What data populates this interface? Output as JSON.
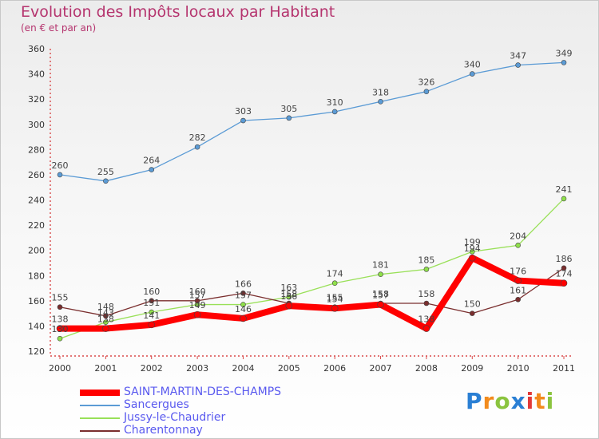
{
  "header": {
    "title": "Evolution des Impôts locaux par Habitant",
    "subtitle": "(en € et par an)"
  },
  "logo": {
    "text": "Proxiti"
  },
  "chart_data": {
    "type": "line",
    "title": "Evolution des Impôts locaux par Habitant",
    "subtitle": "(en € et par an)",
    "xlabel": "",
    "ylabel": "",
    "x": [
      "2000",
      "2001",
      "2002",
      "2003",
      "2004",
      "2005",
      "2006",
      "2007",
      "2008",
      "2009",
      "2010",
      "2011"
    ],
    "ylim": [
      120,
      360
    ],
    "yticks": [
      120,
      140,
      160,
      180,
      200,
      220,
      240,
      260,
      280,
      300,
      320,
      340,
      360
    ],
    "grid": false,
    "legend_position": "bottom-left",
    "series": [
      {
        "name": "SAINT-MARTIN-DES-CHAMPS",
        "color": "#ff0000",
        "values": [
          138,
          138,
          141,
          149,
          146,
          156,
          154,
          157,
          138,
          194,
          176,
          174
        ],
        "labels": [
          "138",
          "138",
          "141",
          "149",
          "146",
          "156",
          "154",
          "157",
          "138",
          "194",
          "176",
          "174"
        ]
      },
      {
        "name": "Sancergues",
        "color": "#5b9bd5",
        "values": [
          260,
          255,
          264,
          282,
          303,
          305,
          310,
          318,
          326,
          340,
          347,
          349
        ],
        "labels": [
          "260",
          "255",
          "264",
          "282",
          "303",
          "305",
          "310",
          "318",
          "326",
          "340",
          "347",
          "349"
        ]
      },
      {
        "name": "Jussy-le-Chaudrier",
        "color": "#99e058",
        "values": [
          130,
          143,
          151,
          157,
          157,
          163,
          174,
          181,
          185,
          199,
          204,
          241
        ],
        "labels": [
          "130",
          "143",
          "151",
          "157",
          "157",
          "163",
          "174",
          "181",
          "185",
          "199",
          "204",
          "241"
        ]
      },
      {
        "name": "Charentonnay",
        "color": "#7a2e2e",
        "values": [
          155,
          148,
          160,
          160,
          166,
          158,
          155,
          158,
          158,
          150,
          161,
          186
        ],
        "labels": [
          "155",
          "148",
          "160",
          "160",
          "166",
          "158",
          "155",
          "158",
          "158",
          "150",
          "161",
          "186"
        ]
      }
    ]
  }
}
